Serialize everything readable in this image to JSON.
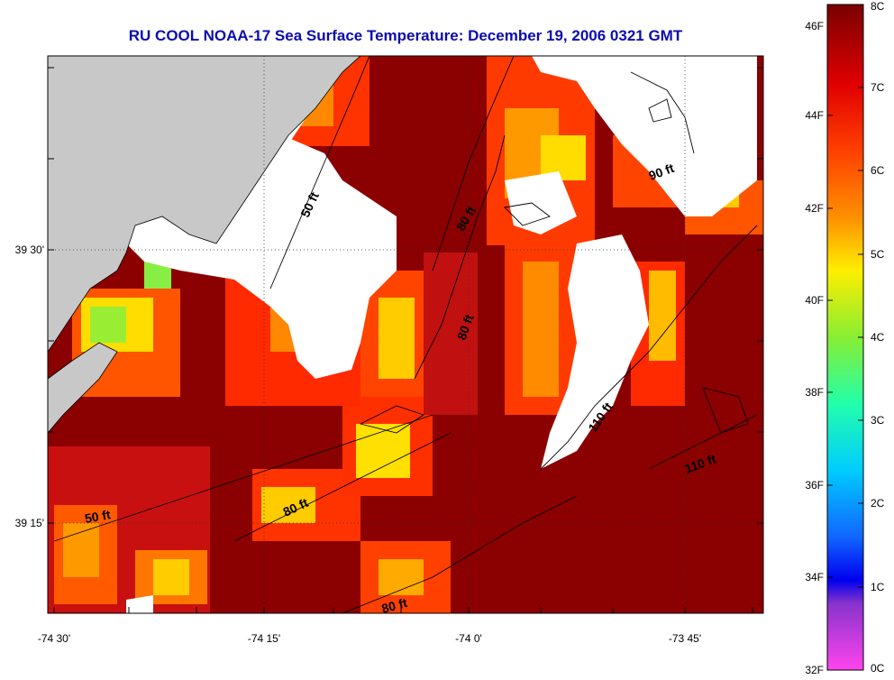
{
  "title": "RU COOL  NOAA-17  Sea Surface Temperature:  December 19, 2006 0321 GMT",
  "map": {
    "lat_labels": [
      "39 30'",
      "39 15'"
    ],
    "lon_labels": [
      "-74 30'",
      "-74 15'",
      "-74 0'",
      "-73 45'"
    ],
    "contour_labels": [
      "50 ft",
      "80 ft",
      "80 ft",
      "90 ft",
      "110 ft",
      "110 ft",
      "80 ft",
      "50 ft",
      "80 ft"
    ],
    "colors": {
      "land": "#c8c8c8",
      "cloud": "#ffffff",
      "warm": "#8b0000",
      "hot": "#c80000",
      "mid": "#ff3300",
      "orange": "#ff8800",
      "yellow": "#ffdd00",
      "green": "#88ee44"
    }
  },
  "colorbar": {
    "f_labels": [
      "46F",
      "44F",
      "42F",
      "40F",
      "38F",
      "36F",
      "34F",
      "32F"
    ],
    "c_labels": [
      "8C",
      "7C",
      "6C",
      "5C",
      "4C",
      "3C",
      "2C",
      "1C",
      "0C"
    ]
  }
}
